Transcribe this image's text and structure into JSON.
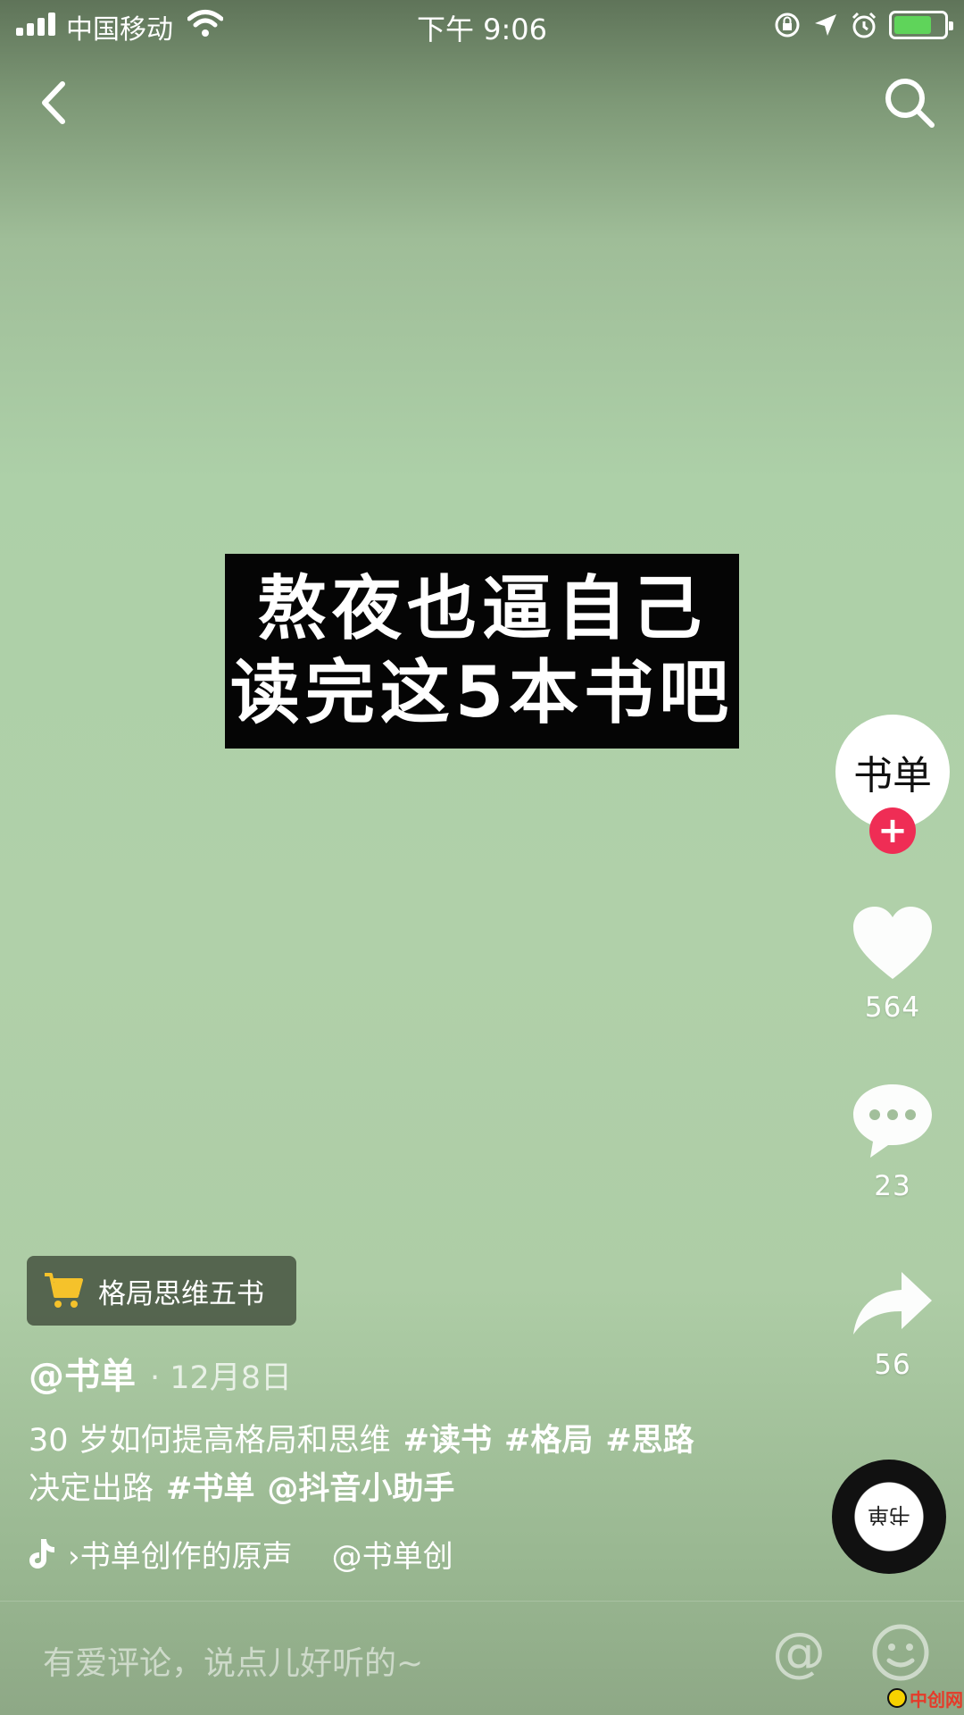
{
  "status_bar": {
    "carrier": "中国移动",
    "time": "下午 9:06",
    "battery_level": 0.75
  },
  "video": {
    "overlay_line1": "熬夜也逼自己",
    "overlay_line2": "读完这5本书吧"
  },
  "creator": {
    "avatar_text": "书单",
    "follow_symbol": "+"
  },
  "actions": {
    "likes": "564",
    "comments": "23",
    "shares": "56"
  },
  "product": {
    "label": "格局思维五书"
  },
  "post": {
    "author": "@书单",
    "date": "· 12月8日",
    "caption_text": "30 岁如何提高格局和思维",
    "tags": [
      "#读书",
      "#格局",
      "#思路"
    ],
    "caption_line2": "决定出路",
    "tag4": "#书单",
    "mention": "@抖音小助手"
  },
  "music": {
    "title": "›书单创作的原声",
    "artist": "@书单创",
    "disc_text": "书单"
  },
  "comment_bar": {
    "placeholder": "有爱评论，说点儿好听的~",
    "at_symbol": "@"
  },
  "watermark": {
    "text": "中创网"
  },
  "colors": {
    "accent": "#ef2d55",
    "cart": "#f5c22b",
    "background": "#b0ceaa"
  }
}
